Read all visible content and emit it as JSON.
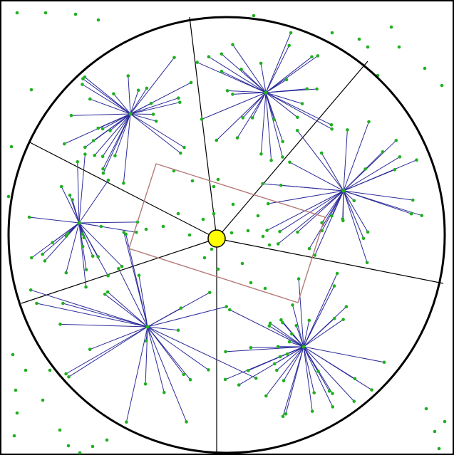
{
  "colors": {
    "background": "#ffffff",
    "frame": "#000000",
    "circle": "#000000",
    "sector_line": "#000000",
    "spoke": "#2b2b9a",
    "point": "#1fb01f",
    "center_node": "#ffff00",
    "center_outline": "#000000",
    "rectangle": "#b57a7a"
  },
  "diagram": {
    "cluster_count": 6,
    "sector_count": 6
  }
}
